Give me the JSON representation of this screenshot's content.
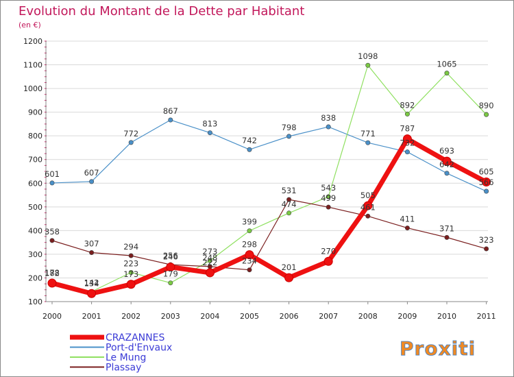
{
  "header": {
    "title": "Evolution du Montant de la Dette par Habitant",
    "unit": "(en €)"
  },
  "logo": {
    "text": "Proxiti"
  },
  "colors": {
    "title": "#c2185b",
    "grid": "#cccccc",
    "frame": "#888888",
    "legend_text": "#3b3bd6"
  },
  "chart_data": {
    "type": "line",
    "title": "Evolution du Montant de la Dette par Habitant",
    "subtitle": "(en €)",
    "xlabel": "",
    "ylabel": "",
    "x": [
      "2000",
      "2001",
      "2002",
      "2003",
      "2004",
      "2005",
      "2006",
      "2007",
      "2008",
      "2009",
      "2010",
      "2011"
    ],
    "yticks": [
      100,
      200,
      300,
      400,
      500,
      600,
      700,
      800,
      900,
      1000,
      1100,
      1200
    ],
    "ylim": [
      100,
      1200
    ],
    "grid": "horizontal",
    "legend_position": "bottom-left",
    "series": [
      {
        "name": "Port-d'Envaux",
        "color": "#4a90c8",
        "line_width": 1.2,
        "marker_fill": "#4a90c8",
        "values": [
          601,
          607,
          772,
          867,
          813,
          742,
          798,
          838,
          771,
          732,
          642,
          566
        ],
        "labels": [
          "601",
          "607",
          "772",
          "867",
          "813",
          "742",
          "798",
          "838",
          "771",
          "732",
          "642",
          "566"
        ]
      },
      {
        "name": "Le Mung",
        "color": "#8fe060",
        "line_width": 1.2,
        "marker_fill": "#7ac943",
        "values": [
          182,
          142,
          223,
          179,
          273,
          399,
          474,
          543,
          1098,
          892,
          1065,
          890
        ],
        "labels": [
          "182",
          "142",
          "223",
          "179",
          "273",
          "399",
          "474",
          "543",
          "1098",
          "892",
          "1065",
          "890"
        ]
      },
      {
        "name": "Plassay",
        "color": "#7a1e1e",
        "line_width": 1.2,
        "marker_fill": "#7a1e1e",
        "values": [
          358,
          307,
          294,
          256,
          248,
          234,
          531,
          499,
          461,
          411,
          371,
          323
        ],
        "labels": [
          "358",
          "307",
          "294",
          "256",
          "248",
          "234",
          "531",
          "499",
          "461",
          "411",
          "371",
          "323"
        ]
      },
      {
        "name": "CRAZANNES",
        "color": "#ee1111",
        "line_width": 7,
        "marker_fill": "#ee1111",
        "values": [
          178,
          134,
          173,
          246,
          222,
          298,
          201,
          270,
          505,
          787,
          693,
          605
        ],
        "labels": [
          "178",
          "134",
          "173",
          "246",
          "222",
          "298",
          "201",
          "270",
          "505",
          "787",
          "693",
          "605"
        ]
      }
    ]
  }
}
